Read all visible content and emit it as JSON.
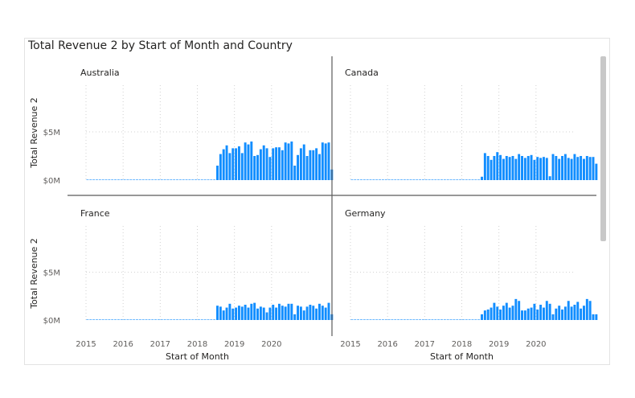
{
  "colors": {
    "bar": "#118DFF",
    "grid": "#d0d0d0",
    "divider": "#5b5b5b",
    "text": "#605E5C"
  },
  "chart_data": {
    "type": "bar",
    "title": "Total Revenue 2 by Start of Month and Country",
    "xlabel": "Start of Month",
    "ylabel": "Total Revenue 2",
    "ylim": [
      0,
      8000000
    ],
    "y_ticks": [
      {
        "value": 0,
        "label": "$0M"
      },
      {
        "value": 5000000,
        "label": "$5M"
      }
    ],
    "x_ticks": [
      "2015",
      "2016",
      "2017",
      "2018",
      "2019",
      "2020"
    ],
    "x_range": [
      "2015-01",
      "2020-12"
    ],
    "grid": true,
    "series_start": "2015-01",
    "series": [
      {
        "name": "Australia",
        "values": [
          50000,
          50000,
          50000,
          50000,
          50000,
          50000,
          50000,
          50000,
          50000,
          50000,
          50000,
          50000,
          50000,
          50000,
          50000,
          50000,
          50000,
          50000,
          50000,
          50000,
          50000,
          50000,
          50000,
          50000,
          50000,
          50000,
          50000,
          50000,
          50000,
          50000,
          50000,
          50000,
          50000,
          50000,
          50000,
          50000,
          50000,
          50000,
          50000,
          50000,
          50000,
          50000,
          1500000,
          2700000,
          3200000,
          3600000,
          2800000,
          3300000,
          3300000,
          3500000,
          2800000,
          3900000,
          3700000,
          4000000,
          2500000,
          2600000,
          3200000,
          3600000,
          3300000,
          2400000,
          3300000,
          3400000,
          3400000,
          3100000,
          3900000,
          3800000,
          4000000,
          1500000,
          2600000,
          3300000,
          3700000,
          2500000,
          3100000,
          3100000,
          3300000,
          2700000,
          3900000,
          3800000,
          3900000,
          1100000
        ]
      },
      {
        "name": "Canada",
        "values": [
          30000,
          30000,
          30000,
          30000,
          30000,
          30000,
          30000,
          30000,
          30000,
          30000,
          30000,
          30000,
          30000,
          30000,
          30000,
          30000,
          30000,
          30000,
          30000,
          30000,
          30000,
          30000,
          30000,
          30000,
          30000,
          30000,
          30000,
          30000,
          30000,
          30000,
          30000,
          30000,
          30000,
          30000,
          30000,
          30000,
          30000,
          30000,
          30000,
          30000,
          30000,
          30000,
          350000,
          2800000,
          2500000,
          2100000,
          2500000,
          2900000,
          2600000,
          2200000,
          2500000,
          2400000,
          2500000,
          2200000,
          2700000,
          2500000,
          2300000,
          2500000,
          2600000,
          2100000,
          2400000,
          2300000,
          2400000,
          2300000,
          400000,
          2700000,
          2500000,
          2200000,
          2500000,
          2700000,
          2300000,
          2200000,
          2700000,
          2400000,
          2500000,
          2200000,
          2500000,
          2400000,
          2400000,
          1700000
        ]
      },
      {
        "name": "France",
        "values": [
          20000,
          20000,
          20000,
          20000,
          20000,
          20000,
          20000,
          20000,
          20000,
          20000,
          20000,
          20000,
          20000,
          20000,
          20000,
          20000,
          20000,
          20000,
          20000,
          20000,
          20000,
          20000,
          20000,
          20000,
          20000,
          20000,
          20000,
          20000,
          20000,
          20000,
          20000,
          20000,
          20000,
          20000,
          20000,
          20000,
          20000,
          20000,
          20000,
          20000,
          20000,
          20000,
          1500000,
          1400000,
          1000000,
          1300000,
          1700000,
          1200000,
          1300000,
          1500000,
          1400000,
          1600000,
          1300000,
          1700000,
          1800000,
          1200000,
          1400000,
          1300000,
          800000,
          1300000,
          1600000,
          1300000,
          1700000,
          1500000,
          1400000,
          1700000,
          1700000,
          600000,
          1500000,
          1400000,
          1000000,
          1400000,
          1600000,
          1500000,
          1200000,
          1700000,
          1500000,
          1300000,
          1800000,
          600000
        ]
      },
      {
        "name": "Germany",
        "values": [
          20000,
          20000,
          20000,
          20000,
          20000,
          20000,
          20000,
          20000,
          20000,
          20000,
          20000,
          20000,
          20000,
          20000,
          20000,
          20000,
          20000,
          20000,
          20000,
          20000,
          20000,
          20000,
          20000,
          20000,
          20000,
          20000,
          20000,
          20000,
          20000,
          20000,
          20000,
          20000,
          20000,
          20000,
          20000,
          20000,
          20000,
          20000,
          20000,
          20000,
          20000,
          20000,
          600000,
          1000000,
          1100000,
          1300000,
          1800000,
          1400000,
          1100000,
          1500000,
          1800000,
          1300000,
          1500000,
          2200000,
          2000000,
          1000000,
          1000000,
          1200000,
          1300000,
          1700000,
          1100000,
          1600000,
          1300000,
          2000000,
          1700000,
          600000,
          1200000,
          1500000,
          1100000,
          1400000,
          2000000,
          1400000,
          1600000,
          1900000,
          1200000,
          1500000,
          2200000,
          2000000,
          600000,
          600000
        ]
      }
    ]
  }
}
